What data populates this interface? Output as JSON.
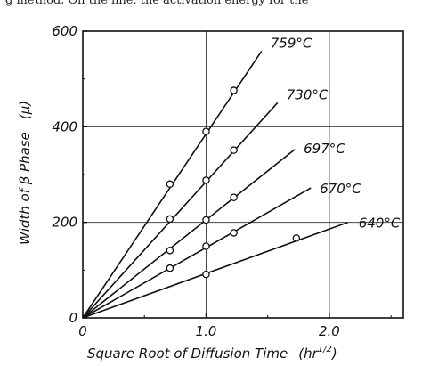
{
  "header_text": "g method. On the line, the activation energy for the",
  "chart_data": {
    "type": "line",
    "title": "",
    "xlabel": "Square Root of Diffusion Time",
    "xunit": "(hr",
    "xunit_exp": "1/2",
    "xunit_close": ")",
    "ylabel": "Width of β Phase",
    "yunit": "(μ)",
    "xlim": [
      0,
      2.6
    ],
    "ylim": [
      0,
      600
    ],
    "x_ticks": [
      {
        "v": 0,
        "label": "0"
      },
      {
        "v": 1.0,
        "label": "1.0"
      },
      {
        "v": 2.0,
        "label": "2.0"
      }
    ],
    "y_ticks": [
      {
        "v": 0,
        "label": "0"
      },
      {
        "v": 200,
        "label": "200"
      },
      {
        "v": 400,
        "label": "400"
      },
      {
        "v": 600,
        "label": "600"
      }
    ],
    "grid": true,
    "series": [
      {
        "name": "759°C",
        "slope": 385,
        "line_end_x": 1.45,
        "points": [
          [
            0.707,
            280
          ],
          [
            1.0,
            390
          ],
          [
            1.225,
            476
          ]
        ]
      },
      {
        "name": "730°C",
        "slope": 285,
        "line_end_x": 1.58,
        "points": [
          [
            0.707,
            207
          ],
          [
            1.0,
            288
          ],
          [
            1.225,
            351
          ]
        ]
      },
      {
        "name": "697°C",
        "slope": 205,
        "line_end_x": 1.72,
        "points": [
          [
            0.707,
            141
          ],
          [
            1.0,
            205
          ],
          [
            1.225,
            252
          ]
        ]
      },
      {
        "name": "670°C",
        "slope": 147,
        "line_end_x": 1.85,
        "points": [
          [
            0.707,
            104
          ],
          [
            1.0,
            150
          ],
          [
            1.225,
            178
          ]
        ]
      },
      {
        "name": "640°C",
        "slope": 93,
        "line_end_x": 2.15,
        "points": [
          [
            1.0,
            91
          ],
          [
            1.732,
            167
          ]
        ]
      }
    ]
  }
}
